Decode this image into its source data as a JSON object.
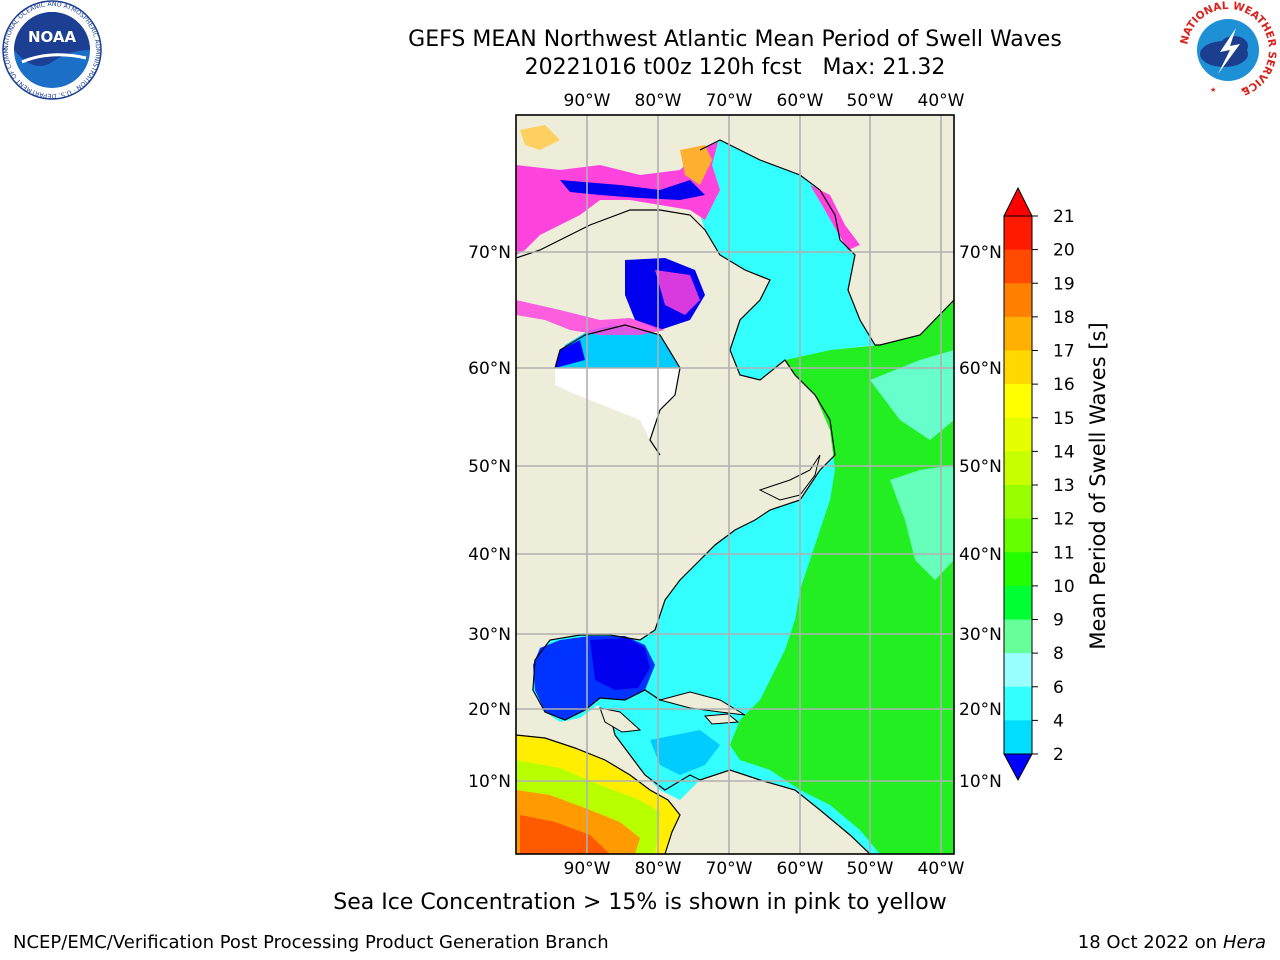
{
  "header": {
    "title_line1": "GEFS MEAN Northwest Atlantic Mean Period of Swell Waves",
    "title_line2": "20221016 t00z 120h fcst   Max: 21.32"
  },
  "logos": {
    "left_text": "NOAA",
    "left_ring_text": "NATIONAL OCEANIC AND ATMOSPHERIC ADMINISTRATION · U.S. DEPARTMENT OF COMMERCE",
    "right_ring_text": "NATIONAL WEATHER SERVICE"
  },
  "map": {
    "lon_labels": [
      "90°W",
      "80°W",
      "70°W",
      "60°W",
      "50°W",
      "40°W"
    ],
    "lat_labels": [
      "70°N",
      "60°N",
      "50°N",
      "40°N",
      "30°N",
      "20°N",
      "10°N"
    ],
    "colors": {
      "land": "#eeedda",
      "coast": "#000000",
      "grid": "#b0b0b0"
    }
  },
  "colorbar": {
    "label": "Mean Period of Swell Waves [s]",
    "ticks": [
      "21",
      "20",
      "19",
      "18",
      "17",
      "16",
      "15",
      "14",
      "13",
      "12",
      "11",
      "10",
      "9",
      "8",
      "6",
      "4",
      "2"
    ],
    "colors_top_to_bottom": [
      "#ff1a00",
      "#ff4a00",
      "#ff8000",
      "#ffb000",
      "#ffd800",
      "#ffff00",
      "#e6ff00",
      "#c8ff00",
      "#99ff00",
      "#66ff00",
      "#22ff00",
      "#00ff33",
      "#66ff99",
      "#99ffff",
      "#33ffff",
      "#00ddff",
      "#0066ff"
    ],
    "under_color": "#0000ff",
    "over_color": "#ff0000"
  },
  "note": "Sea Ice Concentration > 15% is shown in pink to yellow",
  "footer": {
    "left": "NCEP/EMC/Verification Post Processing Product Generation Branch",
    "right_date": "18 Oct 2022 on ",
    "right_host": "Hera"
  }
}
